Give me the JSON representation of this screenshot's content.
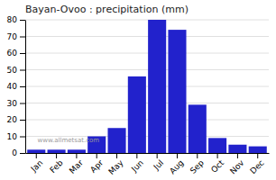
{
  "chart_data": {
    "type": "bar",
    "title": "Bayan-Ovoo : precipitation (mm)",
    "categories": [
      "Jan",
      "Feb",
      "Mar",
      "Apr",
      "May",
      "Jun",
      "Jul",
      "Aug",
      "Sep",
      "Oct",
      "Nov",
      "Dec"
    ],
    "values": [
      2,
      2,
      2,
      10,
      15,
      46,
      80,
      74,
      29,
      9,
      5,
      4
    ],
    "color": "#2222cc",
    "ylim": [
      0,
      80
    ],
    "yticks": [
      0,
      10,
      20,
      30,
      40,
      50,
      60,
      70,
      80
    ],
    "grid": true,
    "annotations": [
      "www.allmetsat.com"
    ]
  }
}
